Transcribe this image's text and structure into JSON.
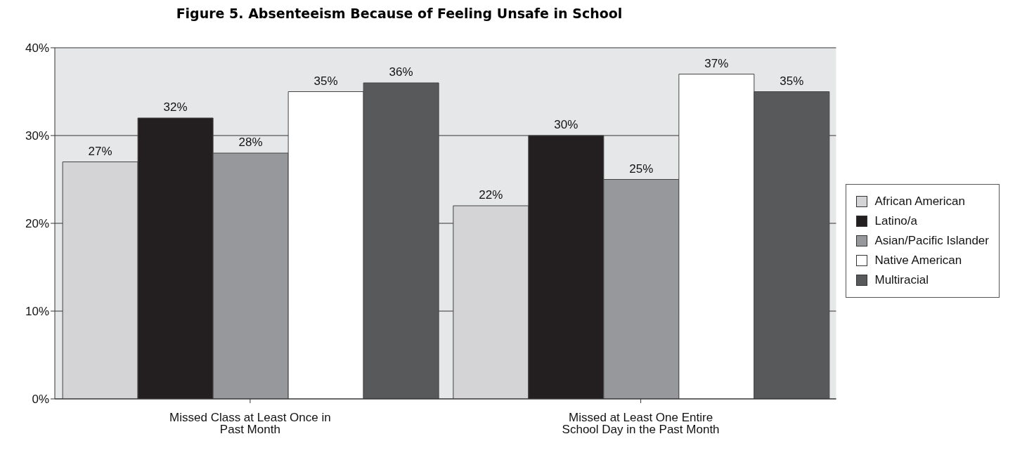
{
  "chart_data": {
    "type": "bar",
    "title": "Figure 5. Absenteeism Because of Feeling Unsafe in School",
    "categories": [
      "Missed Class at Least Once in Past Month",
      "Missed at Least One Entire School Day in the Past Month"
    ],
    "series": [
      {
        "name": "African American",
        "color": "#d4d4d6",
        "values": [
          27,
          22
        ],
        "value_labels": [
          "27%",
          "22%"
        ]
      },
      {
        "name": "Latino/a",
        "color": "#231f20",
        "values": [
          32,
          30
        ],
        "value_labels": [
          "32%",
          "30%"
        ]
      },
      {
        "name": "Asian/Pacific Islander",
        "color": "#97989b",
        "values": [
          28,
          25
        ],
        "value_labels": [
          "28%",
          "25%"
        ]
      },
      {
        "name": "Native American",
        "color": "#ffffff",
        "values": [
          35,
          37
        ],
        "value_labels": [
          "35%",
          "37%"
        ]
      },
      {
        "name": "Multiracial",
        "color": "#58595b",
        "values": [
          36,
          35
        ],
        "value_labels": [
          "36%",
          "35%"
        ]
      }
    ],
    "ylim": [
      0,
      40
    ],
    "yticks": [
      {
        "value": 0,
        "label": "0%"
      },
      {
        "value": 10,
        "label": "10%"
      },
      {
        "value": 20,
        "label": "20%"
      },
      {
        "value": 30,
        "label": "30%"
      },
      {
        "value": 40,
        "label": "40%"
      }
    ],
    "grid": "y",
    "legend": "right"
  }
}
